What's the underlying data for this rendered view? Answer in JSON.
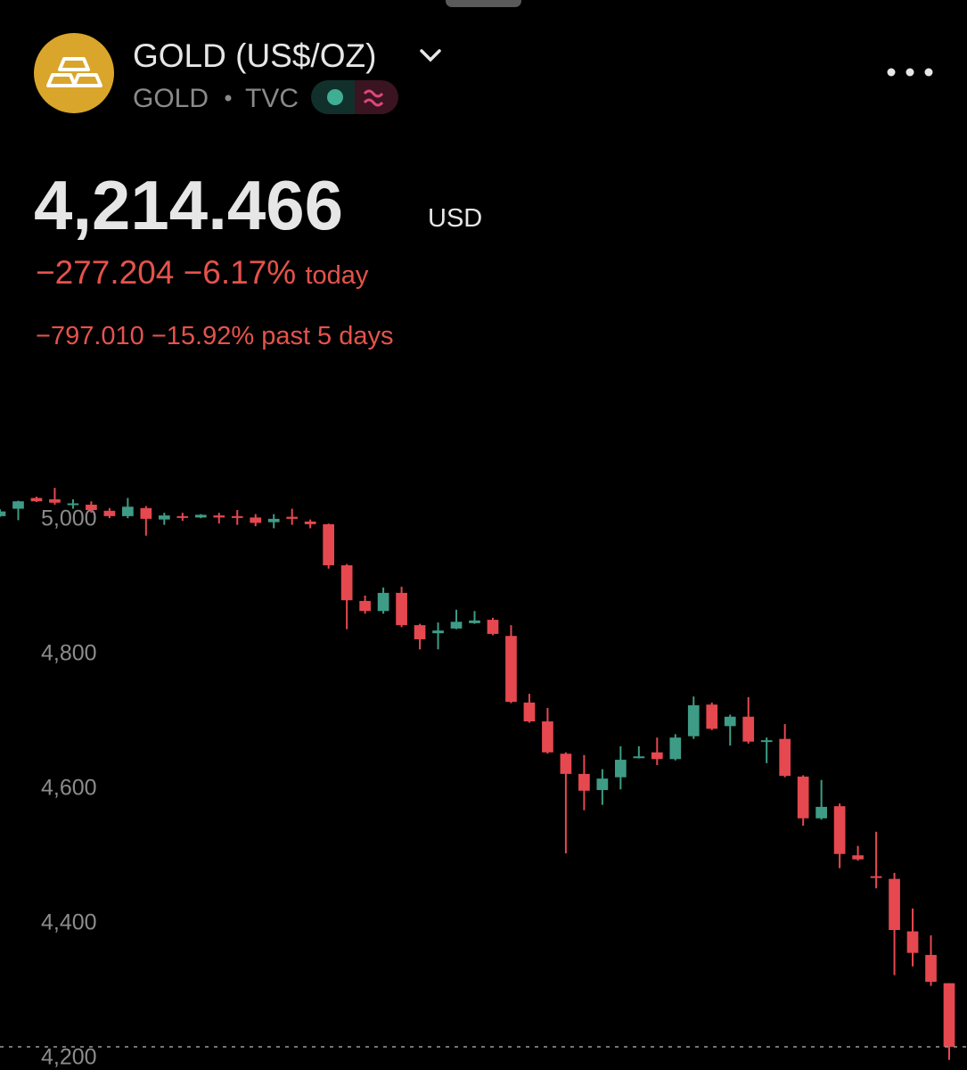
{
  "header": {
    "title": "GOLD (US$/OZ)",
    "symbol": "GOLD",
    "exchange": "TVC",
    "price": "4,214.466",
    "currency": "USD",
    "change": "−277.204",
    "change_pct": "−6.17%",
    "change_period": "today",
    "change_5d": "−797.010",
    "change_5d_pct": "−15.92%",
    "change_5d_period": "past 5 days"
  },
  "chart_data": {
    "type": "candlestick",
    "up_color": "#3e9c86",
    "down_color": "#e5484f",
    "grid": false,
    "last_price_line": true,
    "ylim": [
      4180,
      5130
    ],
    "yticks": [
      {
        "value": 4200,
        "label": "4,200"
      },
      {
        "value": 4400,
        "label": "4,400"
      },
      {
        "value": 4600,
        "label": "4,600"
      },
      {
        "value": 4800,
        "label": "4,800"
      },
      {
        "value": 5000,
        "label": "5,000"
      }
    ],
    "open": [
      5003,
      5014,
      5030,
      5028,
      5020,
      5020,
      5011,
      5003,
      5015,
      4998,
      5003,
      5001,
      5004,
      5003,
      5001,
      4994,
      5002,
      4995,
      4991,
      4930,
      4877,
      4862,
      4889,
      4841,
      4829,
      4836,
      4844,
      4849,
      4825,
      4726,
      4698,
      4650,
      4620,
      4596,
      4615,
      4644,
      4652,
      4642,
      4676,
      4723,
      4691,
      4705,
      4668,
      4672,
      4616,
      4554,
      4572,
      4499,
      4468,
      4464,
      4386,
      4351,
      4309
    ],
    "high": [
      5013,
      5026,
      5032,
      5045,
      5028,
      5025,
      5015,
      5030,
      5018,
      5008,
      5008,
      5006,
      5008,
      5012,
      5006,
      5006,
      5014,
      4998,
      4992,
      4932,
      4885,
      4897,
      4898,
      4843,
      4845,
      4864,
      4862,
      4852,
      4841,
      4739,
      4718,
      4652,
      4648,
      4627,
      4661,
      4661,
      4674,
      4679,
      4735,
      4726,
      4708,
      4734,
      4674,
      4694,
      4618,
      4611,
      4576,
      4513,
      4534,
      4473,
      4420,
      4380,
      4309
    ],
    "low": [
      5002,
      4997,
      5024,
      5020,
      5014,
      5008,
      5000,
      5000,
      4974,
      4990,
      4996,
      5000,
      4992,
      4990,
      4988,
      4985,
      4990,
      4985,
      4925,
      4835,
      4858,
      4858,
      4838,
      4805,
      4805,
      4835,
      4843,
      4826,
      4725,
      4696,
      4650,
      4502,
      4566,
      4574,
      4597,
      4643,
      4633,
      4640,
      4672,
      4685,
      4662,
      4665,
      4636,
      4615,
      4543,
      4552,
      4480,
      4491,
      4450,
      4321,
      4334,
      4305,
      4195
    ],
    "close": [
      5010,
      5025,
      5025,
      5023,
      5022,
      5012,
      5003,
      5017,
      4999,
      5004,
      5001,
      5005,
      5001,
      5001,
      4993,
      4999,
      4999,
      4991,
      4930,
      4878,
      4862,
      4889,
      4841,
      4820,
      4833,
      4846,
      4848,
      4828,
      4727,
      4698,
      4652,
      4620,
      4595,
      4613,
      4641,
      4646,
      4642,
      4674,
      4722,
      4687,
      4705,
      4668,
      4670,
      4617,
      4554,
      4571,
      4501,
      4493,
      4466,
      4388,
      4354,
      4311,
      4214.466
    ]
  }
}
